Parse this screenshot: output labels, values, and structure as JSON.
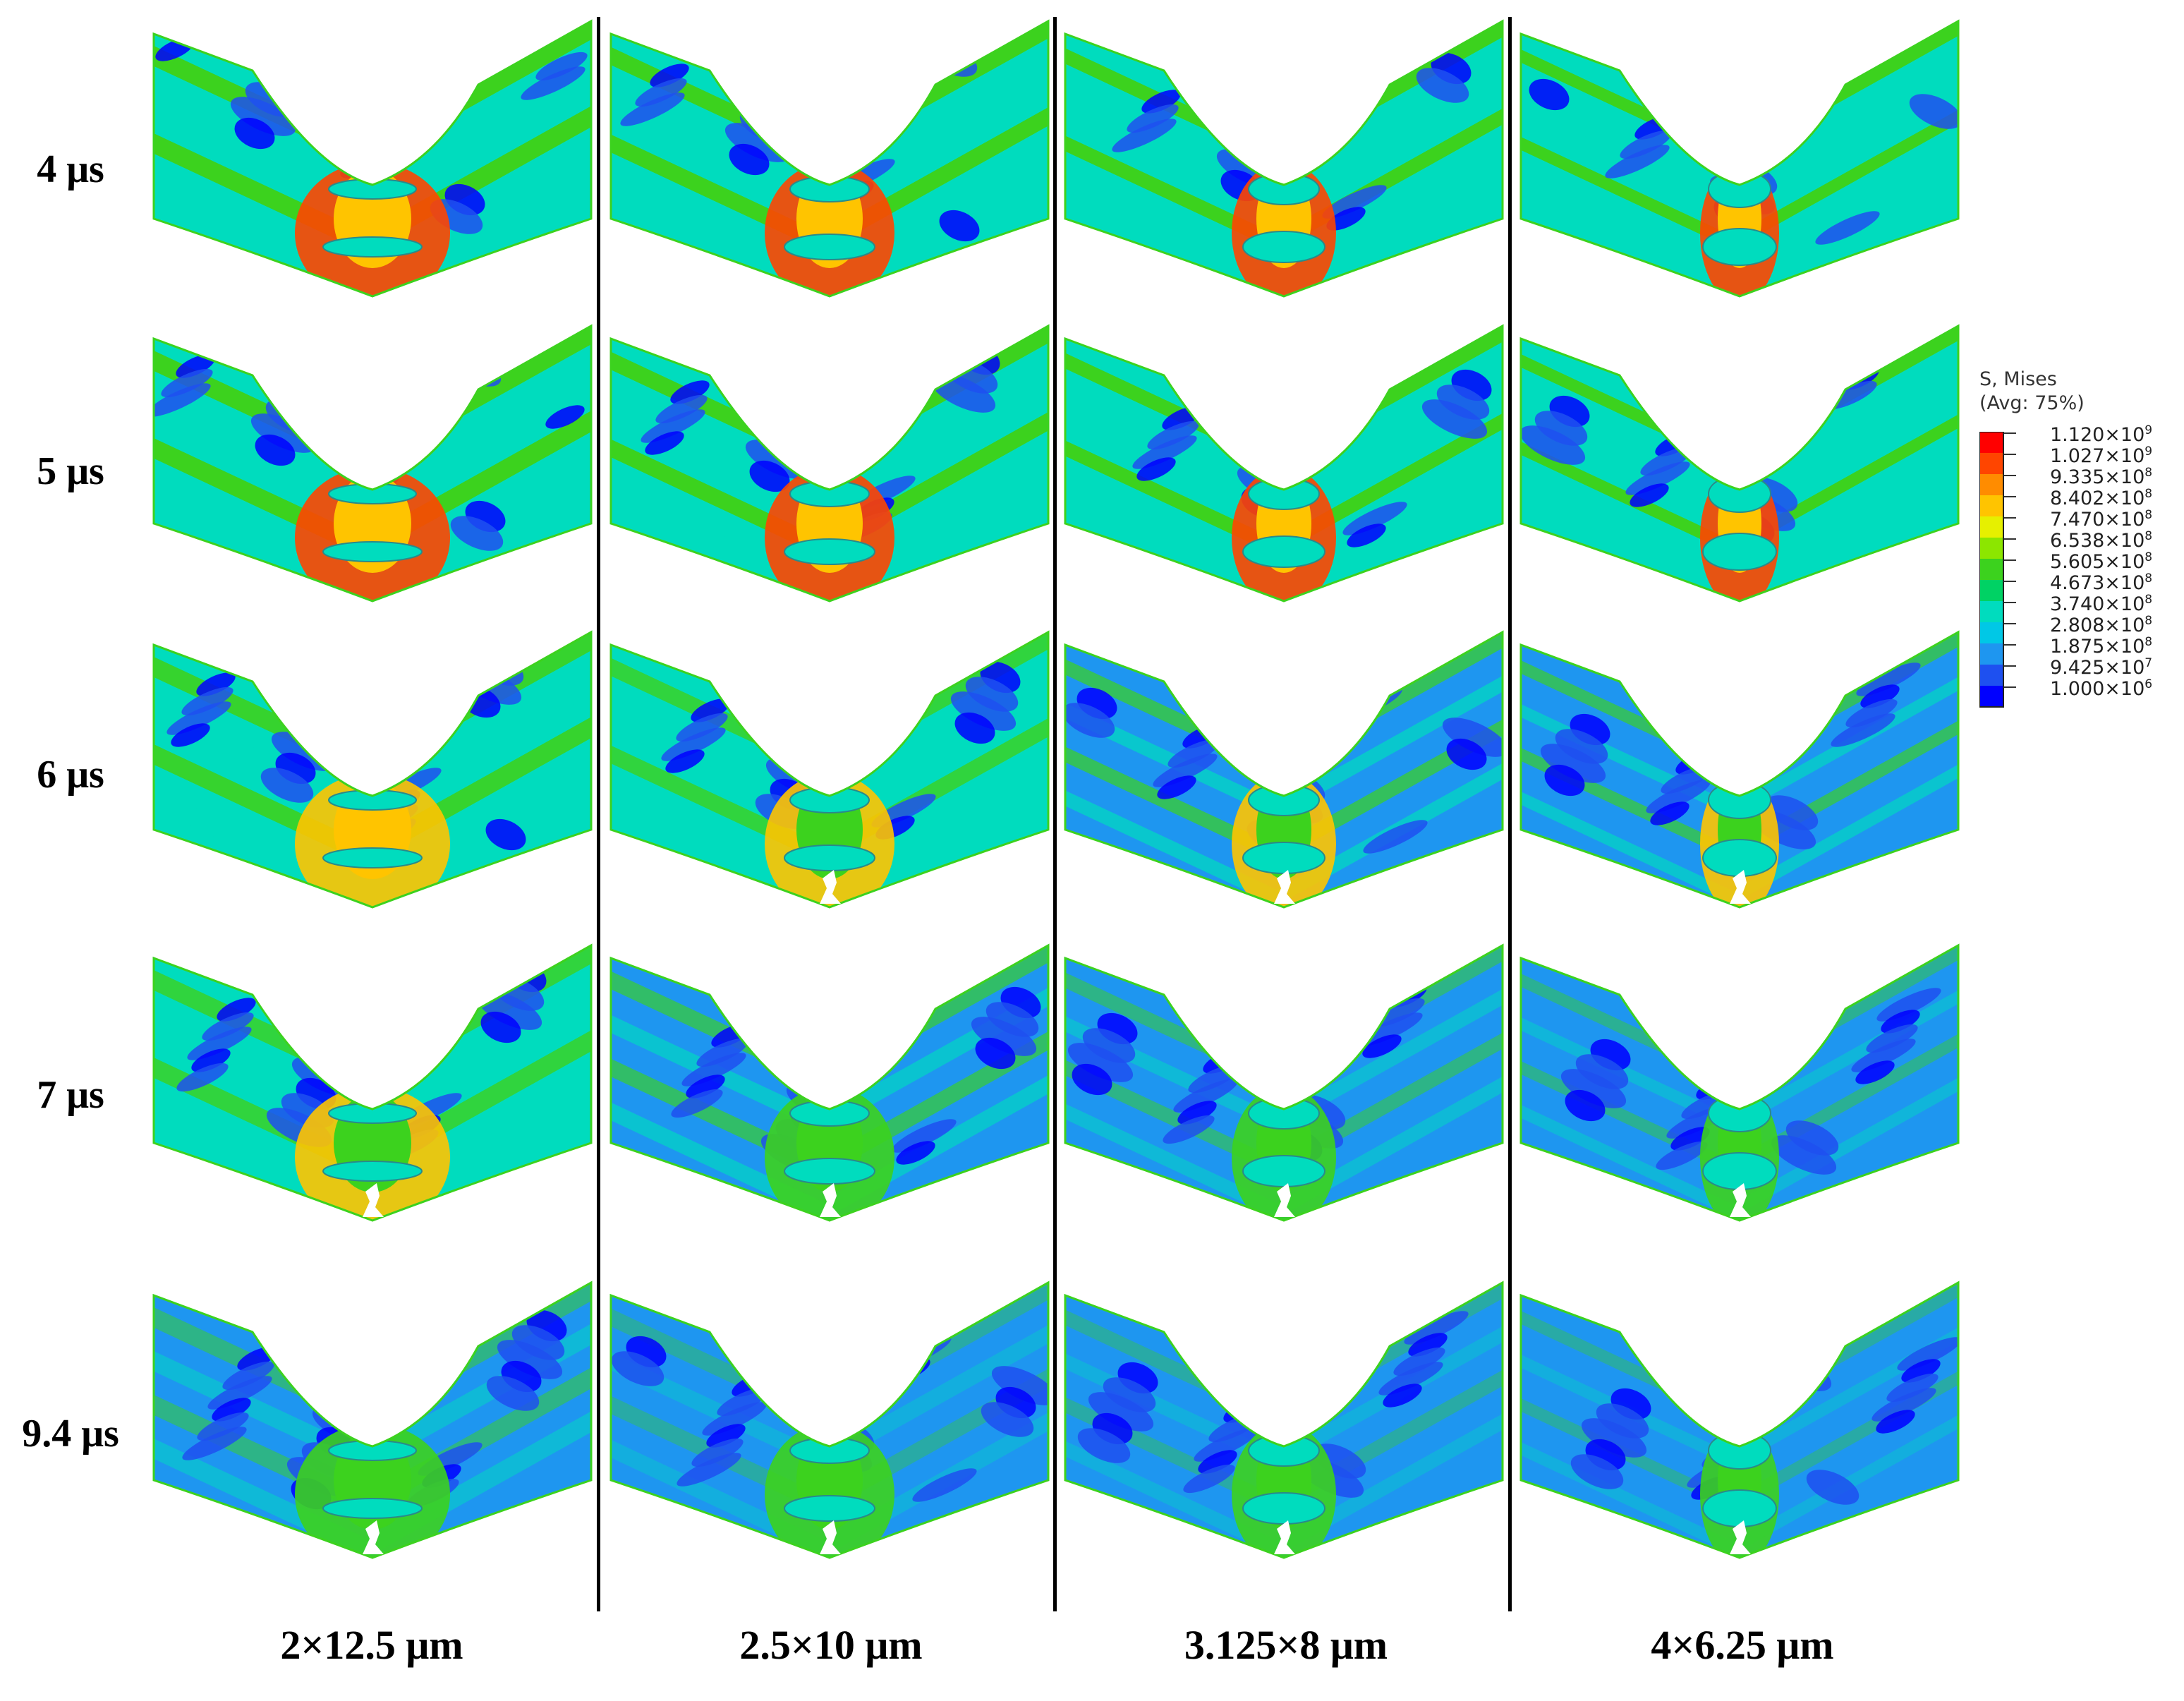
{
  "rows": [
    {
      "label": "4 μs"
    },
    {
      "label": "5 μs"
    },
    {
      "label": "6 μs"
    },
    {
      "label": "7 μs"
    },
    {
      "label": "9.4 μs"
    }
  ],
  "columns": [
    {
      "label": "2×12.5 μm"
    },
    {
      "label": "2.5×10 μm"
    },
    {
      "label": "3.125×8 μm"
    },
    {
      "label": "4×6.25 μm"
    }
  ],
  "legend": {
    "title": "S, Mises",
    "subtitle": "(Avg: 75%)",
    "entries": [
      {
        "mantissa": "1.120",
        "exponent": "9",
        "color": "#ff0000"
      },
      {
        "mantissa": "1.027",
        "exponent": "9",
        "color": "#ff4500"
      },
      {
        "mantissa": "9.335",
        "exponent": "8",
        "color": "#ff8c00"
      },
      {
        "mantissa": "8.402",
        "exponent": "8",
        "color": "#ffc400"
      },
      {
        "mantissa": "7.470",
        "exponent": "8",
        "color": "#e6f000"
      },
      {
        "mantissa": "6.538",
        "exponent": "8",
        "color": "#8ce600"
      },
      {
        "mantissa": "5.605",
        "exponent": "8",
        "color": "#3cd21e"
      },
      {
        "mantissa": "4.673",
        "exponent": "8",
        "color": "#00d264"
      },
      {
        "mantissa": "3.740",
        "exponent": "8",
        "color": "#00dcbe"
      },
      {
        "mantissa": "2.808",
        "exponent": "8",
        "color": "#00c8e6"
      },
      {
        "mantissa": "1.875",
        "exponent": "8",
        "color": "#1e96f0"
      },
      {
        "mantissa": "9.425",
        "exponent": "7",
        "color": "#1e50f0"
      },
      {
        "mantissa": "1.000",
        "exponent": "6",
        "color": "#0000ff"
      }
    ]
  },
  "colors": {
    "mises_low": "#0000ff",
    "mises_lowmid": "#1e96f0",
    "mises_mid": "#00dcbe",
    "mises_midhigh": "#3cd21e",
    "mises_high": "#ffc400",
    "mises_peak": "#ff4500",
    "hole_fill": "#1e50f0",
    "outline": "#1b1b1b"
  }
}
